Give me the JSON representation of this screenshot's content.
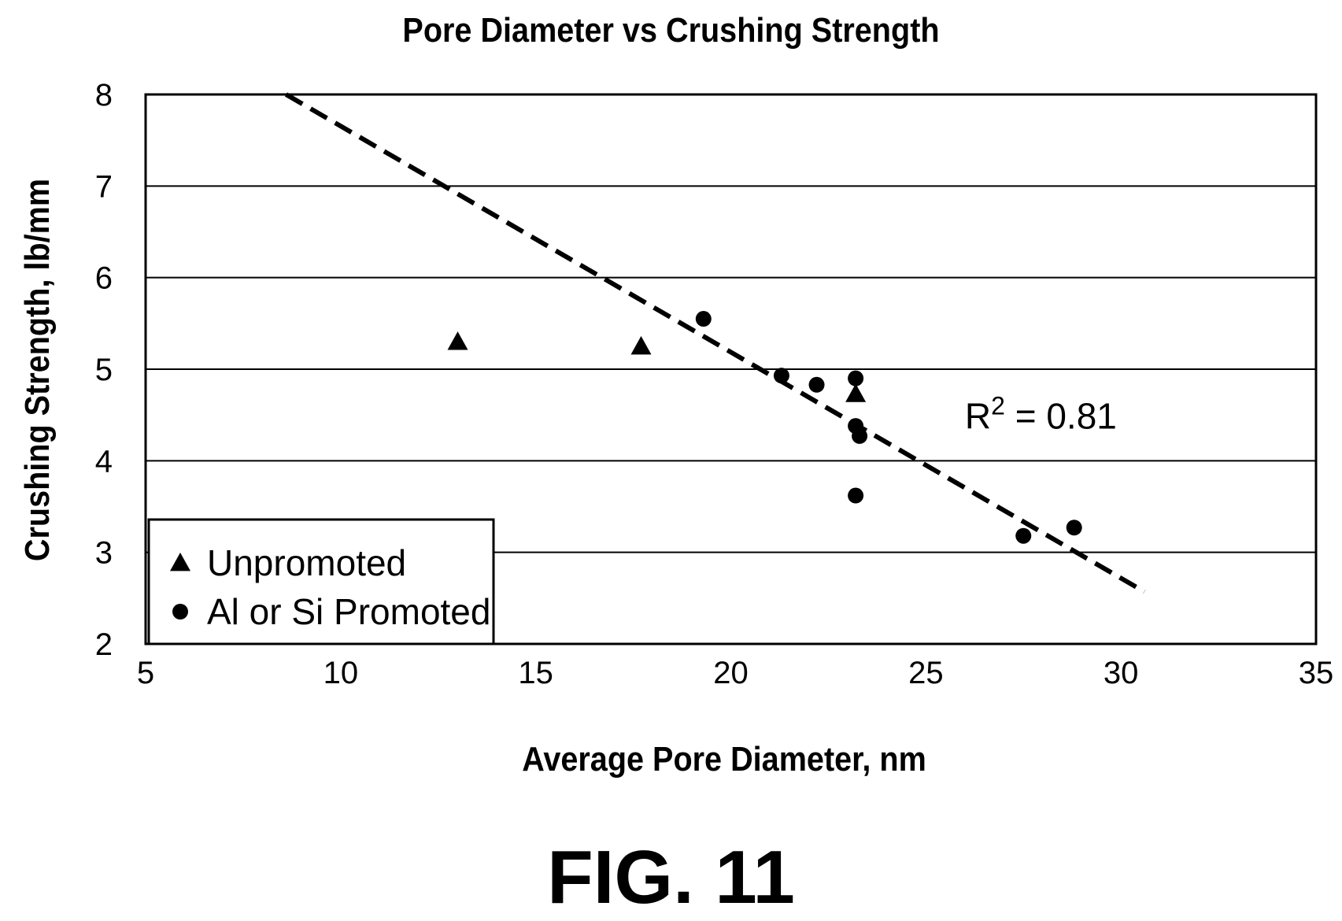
{
  "chart_data": {
    "type": "scatter",
    "title": "Pore Diameter vs Crushing Strength",
    "xlabel": "Average Pore Diameter, nm",
    "ylabel": "Crushing Strength, lb/mm",
    "xlim": [
      5,
      35
    ],
    "ylim": [
      2,
      8
    ],
    "xticks": [
      "5",
      "10",
      "15",
      "20",
      "25",
      "30",
      "35"
    ],
    "yticks": [
      "2",
      "3",
      "4",
      "5",
      "6",
      "7",
      "8"
    ],
    "grid": "horizontal",
    "legend_position": "bottom-left",
    "series": [
      {
        "name": "Unpromoted",
        "marker": "triangle",
        "points": [
          {
            "x": 13.0,
            "y": 5.3
          },
          {
            "x": 17.7,
            "y": 5.25
          },
          {
            "x": 23.2,
            "y": 4.73
          }
        ]
      },
      {
        "name": "Al or Si Promoted",
        "marker": "circle",
        "points": [
          {
            "x": 19.3,
            "y": 5.55
          },
          {
            "x": 21.3,
            "y": 4.93
          },
          {
            "x": 22.2,
            "y": 4.83
          },
          {
            "x": 23.2,
            "y": 4.9
          },
          {
            "x": 23.2,
            "y": 4.38
          },
          {
            "x": 23.3,
            "y": 4.27
          },
          {
            "x": 23.2,
            "y": 3.62
          },
          {
            "x": 27.5,
            "y": 3.18
          },
          {
            "x": 28.8,
            "y": 3.27
          }
        ]
      }
    ],
    "trendline": {
      "style": "dashed",
      "points": [
        {
          "x": 8.6,
          "y": 8.0
        },
        {
          "x": 30.6,
          "y": 2.57
        }
      ]
    },
    "annotation": {
      "base": "R",
      "sup": "2",
      "rest": " = 0.81",
      "x": 26.0,
      "y": 4.35
    }
  },
  "figure_label": "FIG. 11"
}
